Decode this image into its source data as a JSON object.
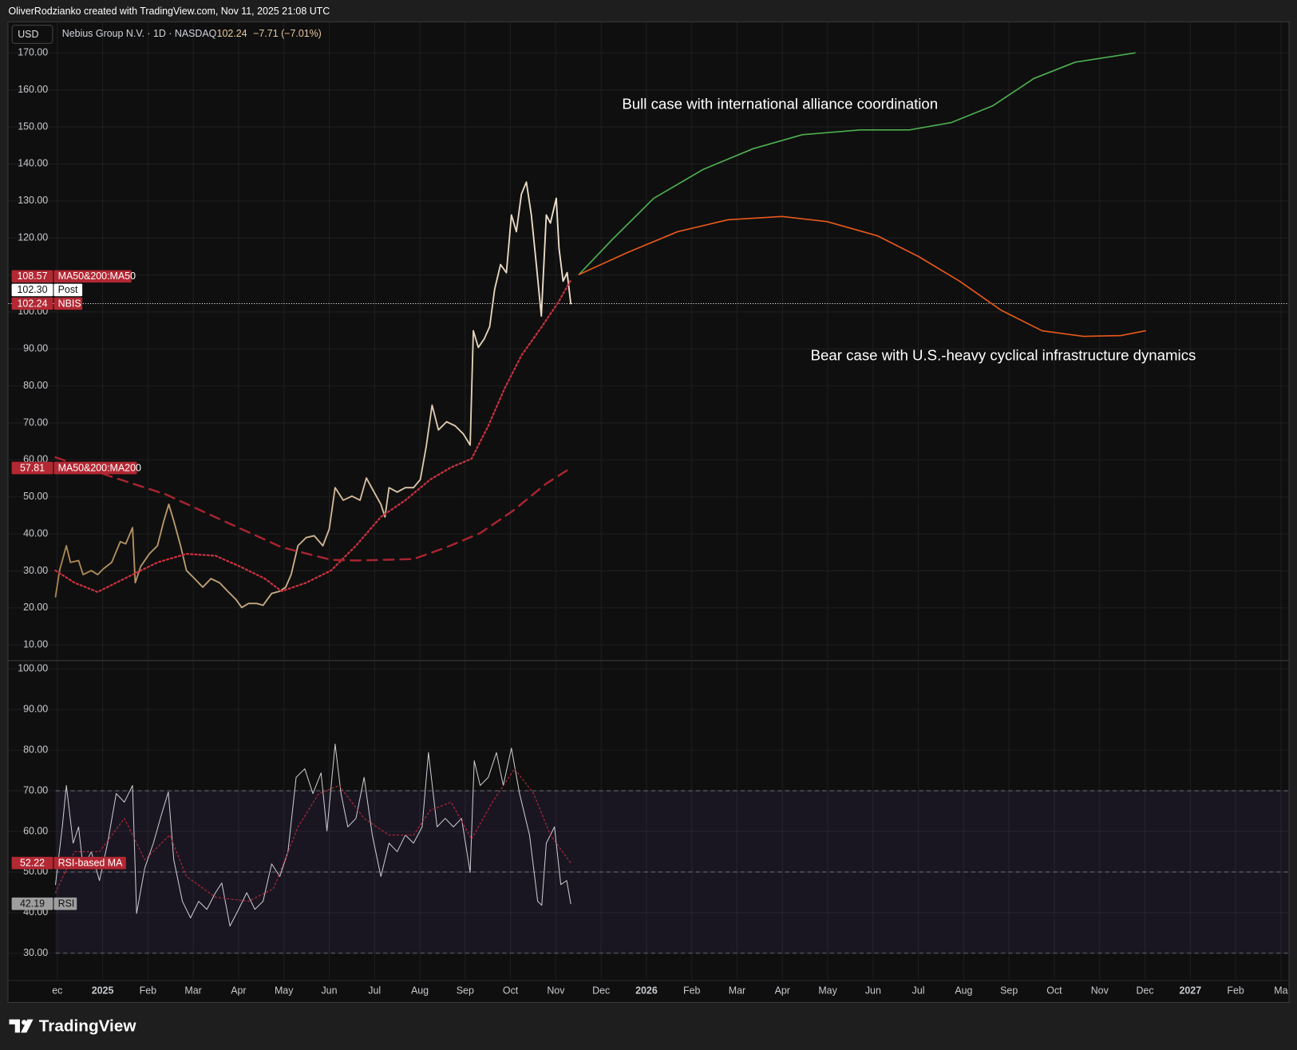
{
  "header": {
    "attribution": "OliverRodzianko created with TradingView.com, Nov 11, 2025 21:08 UTC"
  },
  "legend": {
    "currency": "USD",
    "symbol": "Nebius Group N.V. · 1D · NASDAQ",
    "last": "102.24",
    "change": "−7.71 (−7.01%)"
  },
  "footer": {
    "brand": "TradingView"
  },
  "chart_data": [
    {
      "type": "line",
      "xlim": [
        -1.08,
        27.17
      ],
      "ylim": [
        5.98,
        178.27
      ],
      "yticks": [
        {
          "value": 10,
          "label": "10.00"
        },
        {
          "value": 20,
          "label": "20.00"
        },
        {
          "value": 30,
          "label": "30.00"
        },
        {
          "value": 40,
          "label": "40.00"
        },
        {
          "value": 50,
          "label": "50.00"
        },
        {
          "value": 60,
          "label": "60.00"
        },
        {
          "value": 70,
          "label": "70.00"
        },
        {
          "value": 80,
          "label": "80.00"
        },
        {
          "value": 90,
          "label": "90.00"
        },
        {
          "value": 100,
          "label": "100.00"
        },
        {
          "value": 110,
          "label": "110.00"
        },
        {
          "value": 120,
          "label": "120.00"
        },
        {
          "value": 130,
          "label": "130.00"
        },
        {
          "value": 140,
          "label": "140.00"
        },
        {
          "value": 150,
          "label": "150.00"
        },
        {
          "value": 160,
          "label": "160.00"
        },
        {
          "value": 170,
          "label": "170.00"
        }
      ],
      "grid": true,
      "annotations": [
        "Bull case with international alliance coordination",
        "Bear case with U.S.-heavy cyclical infrastructure dynamics"
      ],
      "post_market": {
        "name": "Post",
        "value": 102.3,
        "label": "102.30"
      },
      "series": [
        {
          "name": "NBIS",
          "color": "#a8844f",
          "color_end": "#f0e2cf",
          "badge": "#b22833",
          "price_line": true,
          "style": "solid",
          "width": 1.8,
          "x": [
            -0.04,
            0.05,
            0.2,
            0.29,
            0.47,
            0.57,
            0.75,
            0.89,
            1.02,
            1.2,
            1.39,
            1.51,
            1.66,
            1.72,
            1.84,
            2.03,
            2.21,
            2.35,
            2.46,
            2.57,
            2.72,
            2.85,
            3.03,
            3.21,
            3.39,
            3.58,
            3.76,
            3.94,
            4.07,
            4.22,
            4.4,
            4.54,
            4.73,
            4.91,
            5.04,
            5.16,
            5.31,
            5.49,
            5.67,
            5.86,
            6.0,
            6.13,
            6.31,
            6.5,
            6.68,
            6.82,
            6.99,
            7.14,
            7.23,
            7.32,
            7.5,
            7.68,
            7.86,
            8.01,
            8.14,
            8.27,
            8.41,
            8.59,
            8.78,
            8.96,
            9.11,
            9.18,
            9.29,
            9.42,
            9.54,
            9.65,
            9.78,
            9.91,
            10.02,
            10.13,
            10.24,
            10.35,
            10.46,
            10.57,
            10.68,
            10.79,
            10.88,
            11.01,
            11.07,
            11.16,
            11.25,
            11.33
          ],
          "values": [
            23.0,
            30.1,
            36.8,
            32.3,
            32.8,
            29.0,
            30.1,
            29.0,
            30.6,
            32.3,
            37.9,
            37.3,
            41.7,
            26.8,
            31.2,
            34.6,
            36.8,
            43.5,
            48.0,
            43.5,
            36.8,
            30.1,
            27.9,
            25.6,
            27.9,
            26.8,
            24.5,
            22.3,
            20.1,
            21.2,
            21.2,
            20.7,
            23.9,
            24.5,
            25.6,
            29.0,
            36.8,
            39.0,
            39.5,
            36.8,
            41.3,
            52.5,
            49.1,
            50.2,
            49.1,
            55.1,
            51.3,
            48.0,
            44.6,
            52.5,
            51.3,
            52.5,
            52.5,
            54.7,
            63.6,
            74.8,
            68.1,
            70.3,
            69.2,
            67.0,
            64.0,
            94.9,
            90.4,
            92.7,
            96.0,
            106.1,
            112.8,
            110.6,
            126.2,
            121.7,
            131.8,
            135.1,
            126.2,
            112.8,
            98.9,
            126.2,
            124.0,
            130.7,
            117.3,
            108.3,
            110.6,
            102.24
          ]
        },
        {
          "name": "MA50&200:MA50",
          "color": "#c8303f",
          "badge": "#b22833",
          "style": "dotted",
          "width": 2.2,
          "x": [
            -0.04,
            0.38,
            0.89,
            1.48,
            2.21,
            2.85,
            3.49,
            4.03,
            4.58,
            4.95,
            5.49,
            6.04,
            6.59,
            7.14,
            7.68,
            8.23,
            8.69,
            9.14,
            9.51,
            9.87,
            10.24,
            10.69,
            11.06,
            11.33
          ],
          "values": [
            30.1,
            26.8,
            24.3,
            27.9,
            32.3,
            34.6,
            34.1,
            31.2,
            27.9,
            24.5,
            26.8,
            30.1,
            36.8,
            44.6,
            49.1,
            54.7,
            58.0,
            60.3,
            69.2,
            79.3,
            88.2,
            96.0,
            102.7,
            108.57
          ]
        },
        {
          "name": "MA50&200:MA200",
          "color": "#a82430",
          "badge": "#b22833",
          "style": "dashed",
          "width": 2.4,
          "x": [
            -0.04,
            1.11,
            2.39,
            3.67,
            4.95,
            6.04,
            6.59,
            7.86,
            8.59,
            9.33,
            10.05,
            10.79,
            11.33
          ],
          "values": [
            60.7,
            55.8,
            50.7,
            43.5,
            36.4,
            33.0,
            32.8,
            33.2,
            36.4,
            40.2,
            46.2,
            53.6,
            57.81
          ]
        },
        {
          "color": "#4caf50",
          "style": "solid",
          "width": 1.6,
          "x": [
            11.51,
            12.24,
            13.16,
            14.25,
            15.35,
            16.44,
            17.72,
            18.81,
            19.73,
            20.64,
            21.55,
            22.46,
            23.78
          ],
          "values": [
            110.1,
            119.5,
            130.7,
            138.5,
            144.1,
            147.9,
            149.2,
            149.2,
            151.2,
            155.7,
            163.1,
            167.5,
            170.0
          ]
        },
        {
          "color": "#e8591a",
          "style": "solid",
          "width": 1.6,
          "x": [
            11.51,
            12.59,
            13.69,
            14.8,
            15.99,
            16.99,
            18.09,
            19.0,
            19.91,
            20.82,
            21.73,
            22.64,
            23.47,
            24.01
          ],
          "values": [
            110.1,
            116.1,
            121.7,
            124.9,
            125.8,
            124.4,
            120.6,
            115.0,
            108.3,
            100.5,
            94.9,
            93.4,
            93.6,
            94.9
          ]
        }
      ]
    },
    {
      "type": "line",
      "xlim": [
        -1.08,
        27.17
      ],
      "ylim": [
        23.49,
        101.83
      ],
      "xticks": [
        {
          "value": 0,
          "label": "ec"
        },
        {
          "value": 1,
          "label": "2025"
        },
        {
          "value": 2,
          "label": "Feb"
        },
        {
          "value": 3,
          "label": "Mar"
        },
        {
          "value": 4,
          "label": "Apr"
        },
        {
          "value": 5,
          "label": "May"
        },
        {
          "value": 6,
          "label": "Jun"
        },
        {
          "value": 7,
          "label": "Jul"
        },
        {
          "value": 8,
          "label": "Aug"
        },
        {
          "value": 9,
          "label": "Sep"
        },
        {
          "value": 10,
          "label": "Oct"
        },
        {
          "value": 11,
          "label": "Nov"
        },
        {
          "value": 12,
          "label": "Dec"
        },
        {
          "value": 13,
          "label": "2026"
        },
        {
          "value": 14,
          "label": "Feb"
        },
        {
          "value": 15,
          "label": "Mar"
        },
        {
          "value": 16,
          "label": "Apr"
        },
        {
          "value": 17,
          "label": "May"
        },
        {
          "value": 18,
          "label": "Jun"
        },
        {
          "value": 19,
          "label": "Jul"
        },
        {
          "value": 20,
          "label": "Aug"
        },
        {
          "value": 21,
          "label": "Sep"
        },
        {
          "value": 22,
          "label": "Oct"
        },
        {
          "value": 23,
          "label": "Nov"
        },
        {
          "value": 24,
          "label": "Dec"
        },
        {
          "value": 25,
          "label": "2027"
        },
        {
          "value": 26,
          "label": "Feb"
        },
        {
          "value": 27,
          "label": "Ma"
        }
      ],
      "yticks": [
        {
          "value": 30,
          "label": "30.00"
        },
        {
          "value": 40,
          "label": "40.00"
        },
        {
          "value": 50,
          "label": "50.00"
        },
        {
          "value": 60,
          "label": "60.00"
        },
        {
          "value": 70,
          "label": "70.00"
        },
        {
          "value": 80,
          "label": "80.00"
        },
        {
          "value": 90,
          "label": "90.00"
        },
        {
          "value": 100,
          "label": "100.00"
        }
      ],
      "grid": true,
      "levels": [
        70,
        50,
        30
      ],
      "band_color": "#7e57c2",
      "series": [
        {
          "name": "RSI",
          "color": "#c9c9d1",
          "badge": "#9e9e9e",
          "style": "solid",
          "width": 1,
          "x": [
            -0.04,
            0.11,
            0.2,
            0.35,
            0.47,
            0.57,
            0.75,
            0.93,
            1.11,
            1.3,
            1.48,
            1.66,
            1.75,
            1.93,
            2.12,
            2.3,
            2.45,
            2.57,
            2.76,
            2.94,
            3.12,
            3.3,
            3.49,
            3.63,
            3.81,
            4.0,
            4.18,
            4.36,
            4.54,
            4.73,
            4.91,
            5.09,
            5.27,
            5.46,
            5.64,
            5.82,
            5.95,
            6.13,
            6.26,
            6.41,
            6.59,
            6.77,
            6.95,
            7.14,
            7.32,
            7.5,
            7.68,
            7.86,
            8.05,
            8.19,
            8.38,
            8.56,
            8.74,
            8.92,
            9.11,
            9.2,
            9.33,
            9.51,
            9.69,
            9.84,
            10.02,
            10.2,
            10.42,
            10.6,
            10.69,
            10.79,
            10.97,
            11.11,
            11.24,
            11.33
          ],
          "values": [
            46.9,
            61.1,
            71.3,
            57.1,
            61.1,
            51.0,
            55.0,
            47.9,
            57.1,
            69.3,
            67.2,
            71.3,
            39.8,
            51.0,
            57.1,
            64.2,
            69.7,
            53.0,
            42.8,
            38.7,
            42.8,
            40.8,
            44.9,
            47.3,
            36.7,
            40.8,
            44.9,
            40.8,
            42.8,
            52.0,
            48.9,
            55.0,
            73.3,
            75.4,
            69.3,
            74.4,
            60.1,
            81.5,
            69.3,
            61.1,
            63.2,
            73.3,
            59.1,
            48.9,
            57.1,
            55.0,
            59.1,
            57.1,
            61.1,
            79.4,
            61.1,
            63.2,
            61.1,
            63.2,
            49.9,
            77.4,
            71.3,
            73.3,
            79.4,
            71.3,
            80.5,
            69.3,
            59.1,
            42.8,
            41.8,
            57.1,
            61.1,
            46.9,
            47.9,
            42.19
          ]
        },
        {
          "name": "RSI-based MA",
          "color": "#b52a3b",
          "badge": "#b22833",
          "style": "dotted",
          "width": 1.1,
          "x": [
            -0.04,
            0.38,
            0.93,
            1.48,
            1.93,
            2.48,
            2.85,
            3.49,
            4.22,
            4.77,
            5.31,
            5.77,
            6.22,
            6.77,
            7.32,
            7.86,
            8.23,
            8.69,
            9.14,
            9.6,
            10.09,
            10.51,
            10.88,
            11.33
          ],
          "values": [
            44.9,
            55.0,
            55.0,
            63.2,
            53.0,
            59.1,
            48.9,
            43.8,
            42.8,
            45.9,
            61.1,
            69.3,
            71.3,
            63.2,
            59.1,
            59.1,
            65.2,
            67.2,
            58.1,
            67.2,
            75.4,
            69.3,
            59.1,
            52.22
          ]
        }
      ]
    }
  ]
}
